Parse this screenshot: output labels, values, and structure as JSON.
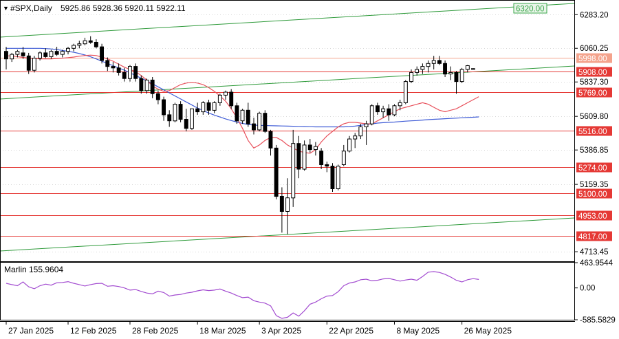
{
  "header": {
    "symbol": "#SPX,Daily",
    "ohlc": "5925.86 5928.36 5920.11 5922.11"
  },
  "price_axis": {
    "ticks": [
      "6283.20",
      "6060.25",
      "5837.30",
      "5609.80",
      "5386.85",
      "5159.35",
      "4713.45"
    ]
  },
  "levels": [
    {
      "value": 5998.0,
      "label": "5998.00",
      "color": "#f4a38c"
    },
    {
      "value": 5908.0,
      "label": "5908.00",
      "color": "#e53935"
    },
    {
      "value": 5769.0,
      "label": "5769.00",
      "color": "#e53935"
    },
    {
      "value": 5516.0,
      "label": "5516.00",
      "color": "#e53935"
    },
    {
      "value": 5274.0,
      "label": "5274.00",
      "color": "#e53935"
    },
    {
      "value": 5100.0,
      "label": "5100.00",
      "color": "#e53935"
    },
    {
      "value": 4953.0,
      "label": "4953.00",
      "color": "#e53935"
    },
    {
      "value": 4817.0,
      "label": "4817.00",
      "color": "#e53935"
    }
  ],
  "target_label": {
    "value": 6320.0,
    "label": "6320.00",
    "color": "#3aa64a"
  },
  "time_axis": {
    "labels": [
      "27 Jan 2025",
      "12 Feb 2025",
      "28 Feb 2025",
      "18 Mar 2025",
      "3 Apr 2025",
      "22 Apr 2025",
      "8 May 2025",
      "26 May 2025"
    ]
  },
  "indicator": {
    "title": "Marlin 155.9604",
    "ticks": [
      "463.9544",
      "0.00",
      "-585.5829"
    ]
  },
  "chart_data": [
    {
      "type": "candlestick",
      "ylim": [
        4650,
        6380
      ],
      "candles": [
        [
          6040,
          6070,
          5920,
          5990
        ],
        [
          5990,
          6030,
          5970,
          6020
        ],
        [
          6020,
          6050,
          6000,
          6040
        ],
        [
          6030,
          6070,
          5990,
          6010
        ],
        [
          6010,
          6030,
          5890,
          5915
        ],
        [
          5915,
          6010,
          5900,
          5995
        ],
        [
          5995,
          6040,
          5980,
          6030
        ],
        [
          6030,
          6060,
          5995,
          6005
        ],
        [
          6005,
          6050,
          5990,
          6040
        ],
        [
          6040,
          6070,
          6010,
          6020
        ],
        [
          6020,
          6050,
          6000,
          6040
        ],
        [
          6040,
          6070,
          6020,
          6060
        ],
        [
          6060,
          6090,
          6040,
          6080
        ],
        [
          6080,
          6110,
          6060,
          6090
        ],
        [
          6090,
          6130,
          6080,
          6110
        ],
        [
          6110,
          6140,
          6090,
          6100
        ],
        [
          6100,
          6120,
          6060,
          6070
        ],
        [
          6070,
          6090,
          5960,
          5980
        ],
        [
          5980,
          6000,
          5910,
          5940
        ],
        [
          5940,
          5970,
          5900,
          5930
        ],
        [
          5930,
          5960,
          5880,
          5900
        ],
        [
          5900,
          5930,
          5840,
          5860
        ],
        [
          5860,
          5950,
          5840,
          5940
        ],
        [
          5940,
          5960,
          5840,
          5860
        ],
        [
          5860,
          5880,
          5760,
          5780
        ],
        [
          5780,
          5860,
          5760,
          5850
        ],
        [
          5850,
          5870,
          5730,
          5760
        ],
        [
          5760,
          5780,
          5690,
          5720
        ],
        [
          5720,
          5740,
          5580,
          5620
        ],
        [
          5620,
          5650,
          5540,
          5580
        ],
        [
          5580,
          5700,
          5570,
          5690
        ],
        [
          5690,
          5710,
          5570,
          5590
        ],
        [
          5590,
          5660,
          5510,
          5530
        ],
        [
          5530,
          5660,
          5520,
          5660
        ],
        [
          5660,
          5700,
          5620,
          5640
        ],
        [
          5640,
          5710,
          5620,
          5700
        ],
        [
          5700,
          5720,
          5620,
          5650
        ],
        [
          5650,
          5710,
          5630,
          5700
        ],
        [
          5700,
          5760,
          5680,
          5750
        ],
        [
          5750,
          5780,
          5720,
          5770
        ],
        [
          5770,
          5790,
          5660,
          5680
        ],
        [
          5680,
          5700,
          5560,
          5580
        ],
        [
          5580,
          5660,
          5560,
          5650
        ],
        [
          5650,
          5700,
          5540,
          5560
        ],
        [
          5560,
          5600,
          5490,
          5520
        ],
        [
          5520,
          5640,
          5510,
          5630
        ],
        [
          5630,
          5650,
          5500,
          5510
        ],
        [
          5510,
          5520,
          5350,
          5400
        ],
        [
          5400,
          5420,
          5060,
          5080
        ],
        [
          5080,
          5140,
          4840,
          4980
        ],
        [
          4980,
          5200,
          4830,
          5070
        ],
        [
          5070,
          5520,
          5010,
          5430
        ],
        [
          5430,
          5480,
          5200,
          5260
        ],
        [
          5260,
          5450,
          5250,
          5420
        ],
        [
          5420,
          5460,
          5370,
          5390
        ],
        [
          5390,
          5440,
          5350,
          5410
        ],
        [
          5380,
          5400,
          5260,
          5290
        ],
        [
          5290,
          5310,
          5240,
          5280
        ],
        [
          5280,
          5300,
          5110,
          5130
        ],
        [
          5130,
          5290,
          5120,
          5280
        ],
        [
          5290,
          5420,
          5280,
          5380
        ],
        [
          5380,
          5480,
          5370,
          5460
        ],
        [
          5460,
          5500,
          5400,
          5480
        ],
        [
          5480,
          5560,
          5460,
          5540
        ],
        [
          5540,
          5580,
          5420,
          5560
        ],
        [
          5560,
          5690,
          5550,
          5680
        ],
        [
          5680,
          5700,
          5620,
          5640
        ],
        [
          5640,
          5680,
          5600,
          5660
        ],
        [
          5660,
          5690,
          5580,
          5620
        ],
        [
          5620,
          5690,
          5610,
          5680
        ],
        [
          5680,
          5720,
          5650,
          5700
        ],
        [
          5700,
          5850,
          5690,
          5840
        ],
        [
          5840,
          5920,
          5830,
          5900
        ],
        [
          5900,
          5940,
          5880,
          5920
        ],
        [
          5920,
          5960,
          5890,
          5940
        ],
        [
          5940,
          5980,
          5900,
          5960
        ],
        [
          5960,
          6010,
          5920,
          5980
        ],
        [
          5980,
          6010,
          5950,
          5960
        ],
        [
          5960,
          5980,
          5870,
          5890
        ],
        [
          5890,
          5940,
          5850,
          5900
        ],
        [
          5900,
          5910,
          5760,
          5840
        ],
        [
          5840,
          5930,
          5830,
          5920
        ],
        [
          5920,
          5950,
          5900,
          5945
        ],
        [
          5925.86,
          5928.36,
          5920.11,
          5922.11
        ]
      ],
      "indicator_values": [
        85,
        60,
        40,
        110,
        20,
        -15,
        40,
        70,
        50,
        95,
        100,
        115,
        85,
        60,
        35,
        60,
        80,
        85,
        30,
        40,
        25,
        0,
        -40,
        -30,
        -65,
        -95,
        -110,
        -60,
        -85,
        -150,
        -130,
        -120,
        -95,
        -80,
        -55,
        -35,
        -50,
        -40,
        -20,
        -60,
        -95,
        -140,
        -180,
        -170,
        -235,
        -260,
        -280,
        -330,
        -510,
        -560,
        -540,
        -460,
        -520,
        -420,
        -300,
        -260,
        -200,
        -150,
        -140,
        -70,
        40,
        90,
        110,
        150,
        160,
        130,
        140,
        165,
        175,
        150,
        125,
        145,
        160,
        140,
        210,
        290,
        300,
        285,
        250,
        200,
        140,
        110,
        150,
        170,
        155
      ],
      "red_ma": [
        6010,
        6010,
        6005,
        6000,
        5995,
        5992,
        5990,
        5990,
        5990,
        5992,
        5995,
        5998,
        6002,
        6008,
        6012,
        6015,
        6012,
        6002,
        5990,
        5975,
        5955,
        5935,
        5920,
        5905,
        5880,
        5850,
        5810,
        5790,
        5775,
        5780,
        5800,
        5820,
        5830,
        5835,
        5830,
        5820,
        5800,
        5775,
        5745,
        5710,
        5660,
        5600,
        5530,
        5450,
        5400,
        5420,
        5450,
        5470,
        5470,
        5450,
        5420,
        5400,
        5380,
        5370,
        5365,
        5390,
        5440,
        5480,
        5510,
        5540,
        5560,
        5570,
        5570,
        5565,
        5560,
        5560,
        5580,
        5600,
        5620,
        5640,
        5660,
        5670,
        5680,
        5690,
        5700,
        5690,
        5670,
        5650,
        5640,
        5650,
        5660,
        5680,
        5700,
        5720,
        5740
      ],
      "blue_ma": [
        6060,
        6060,
        6060,
        6060,
        6060,
        6060,
        6060,
        6058,
        6056,
        6052,
        6046,
        6040,
        6034,
        6026,
        6016,
        6004,
        5990,
        5975,
        5960,
        5945,
        5930,
        5915,
        5898,
        5880,
        5862,
        5845,
        5825,
        5805,
        5785,
        5765,
        5745,
        5725,
        5705,
        5685,
        5665,
        5648,
        5632,
        5618,
        5605,
        5593,
        5582,
        5572,
        5563,
        5556,
        5552,
        5550,
        5549,
        5548,
        5547,
        5546,
        5545,
        5544,
        5543,
        5542,
        5541,
        5540,
        5540,
        5540,
        5540,
        5540,
        5540,
        5542,
        5545,
        5550,
        5556,
        5560,
        5565,
        5568,
        5570,
        5572,
        5575,
        5578,
        5580,
        5582,
        5585,
        5588,
        5590,
        5592,
        5594,
        5596,
        5598,
        5600,
        5602,
        5604,
        5606
      ]
    }
  ]
}
